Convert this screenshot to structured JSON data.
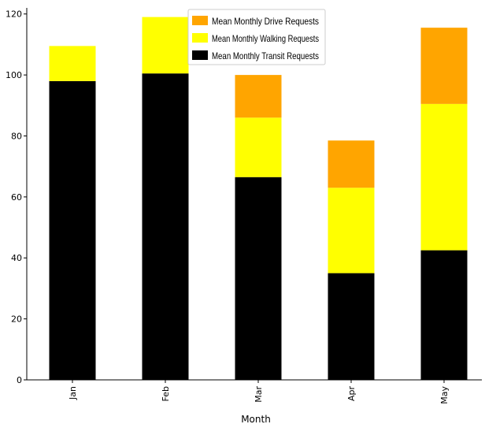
{
  "chart_data": {
    "type": "bar",
    "stacked": true,
    "categories": [
      "Jan",
      "Feb",
      "Mar",
      "Apr",
      "May"
    ],
    "series": [
      {
        "name": "Mean Monthly Transit Requests",
        "color": "#000000",
        "values": [
          98,
          100.5,
          66.5,
          35,
          42.5
        ]
      },
      {
        "name": "Mean Monthly Walking Requests",
        "color": "#ffff00",
        "values": [
          11.5,
          18.5,
          19.5,
          28,
          48
        ]
      },
      {
        "name": "Mean Monthly Drive Requests",
        "color": "#ffa500",
        "values": [
          0,
          0,
          14,
          15.5,
          25
        ]
      }
    ],
    "legend_order": [
      "Mean Monthly Drive Requests",
      "Mean Monthly Walking Requests",
      "Mean Monthly Transit Requests"
    ],
    "legend_position": "top-center",
    "xlabel": "Month",
    "ylabel": "",
    "title": "",
    "ylim": [
      0,
      122
    ],
    "yticks": [
      0,
      20,
      40,
      60,
      80,
      100,
      120
    ],
    "grid": false
  }
}
